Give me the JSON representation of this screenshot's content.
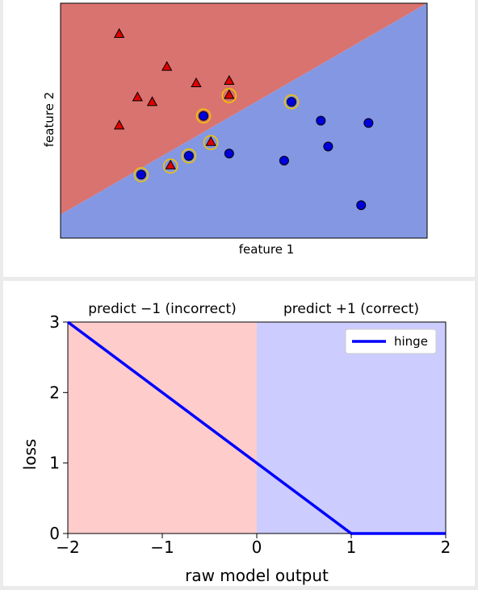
{
  "chart_data": [
    {
      "type": "scatter",
      "title": "",
      "xlabel": "feature 1",
      "ylabel": "feature 2",
      "xlim": [
        0,
        10
      ],
      "ylim": [
        0,
        10
      ],
      "ticks_visible": false,
      "grid": false,
      "decision_boundary": {
        "x": [
          0,
          10
        ],
        "y": [
          1.0,
          10.0
        ]
      },
      "region_colors": {
        "upper": "#d9736f",
        "lower": "#8497e3"
      },
      "series": [
        {
          "marker": "triangle",
          "color": "#e00000",
          "points": [
            {
              "x": 1.6,
              "y": 8.7,
              "support": false
            },
            {
              "x": 2.9,
              "y": 7.3,
              "support": false
            },
            {
              "x": 3.7,
              "y": 6.6,
              "support": false
            },
            {
              "x": 4.6,
              "y": 6.7,
              "support": false
            },
            {
              "x": 2.1,
              "y": 6.0,
              "support": false
            },
            {
              "x": 2.5,
              "y": 5.8,
              "support": false
            },
            {
              "x": 1.6,
              "y": 4.8,
              "support": false
            },
            {
              "x": 4.6,
              "y": 6.1,
              "support": true
            },
            {
              "x": 4.1,
              "y": 4.1,
              "support": true
            },
            {
              "x": 3.0,
              "y": 3.1,
              "support": true
            }
          ]
        },
        {
          "marker": "circle",
          "color": "#0000dd",
          "points": [
            {
              "x": 3.9,
              "y": 5.2,
              "support": true
            },
            {
              "x": 6.3,
              "y": 5.8,
              "support": true
            },
            {
              "x": 3.5,
              "y": 3.5,
              "support": true
            },
            {
              "x": 2.2,
              "y": 2.7,
              "support": true
            },
            {
              "x": 4.6,
              "y": 3.6,
              "support": false
            },
            {
              "x": 6.1,
              "y": 3.3,
              "support": false
            },
            {
              "x": 7.1,
              "y": 5.0,
              "support": false
            },
            {
              "x": 7.3,
              "y": 3.9,
              "support": false
            },
            {
              "x": 8.4,
              "y": 4.9,
              "support": false
            },
            {
              "x": 8.2,
              "y": 1.4,
              "support": false
            }
          ]
        }
      ]
    },
    {
      "type": "line",
      "title": "",
      "xlabel": "raw model output",
      "ylabel": "loss",
      "xlim": [
        -2,
        2
      ],
      "ylim": [
        0,
        3
      ],
      "xticks": [
        -2,
        -1,
        0,
        1,
        2
      ],
      "xtick_labels": [
        "−2",
        "−1",
        "0",
        "1",
        "2"
      ],
      "yticks": [
        0,
        1,
        2,
        3
      ],
      "ytick_labels": [
        "0",
        "1",
        "2",
        "3"
      ],
      "grid": false,
      "legend": {
        "position": "top-right"
      },
      "regions": [
        {
          "label": "predict −1 (incorrect)",
          "x": [
            -2,
            0
          ],
          "color": "#ffcccc"
        },
        {
          "label": "predict +1 (correct)",
          "x": [
            0,
            2
          ],
          "color": "#ccccff"
        }
      ],
      "series": [
        {
          "name": "hinge",
          "color": "#0000ff",
          "x": [
            -2,
            1,
            2
          ],
          "y": [
            3,
            0,
            0
          ]
        }
      ]
    }
  ]
}
